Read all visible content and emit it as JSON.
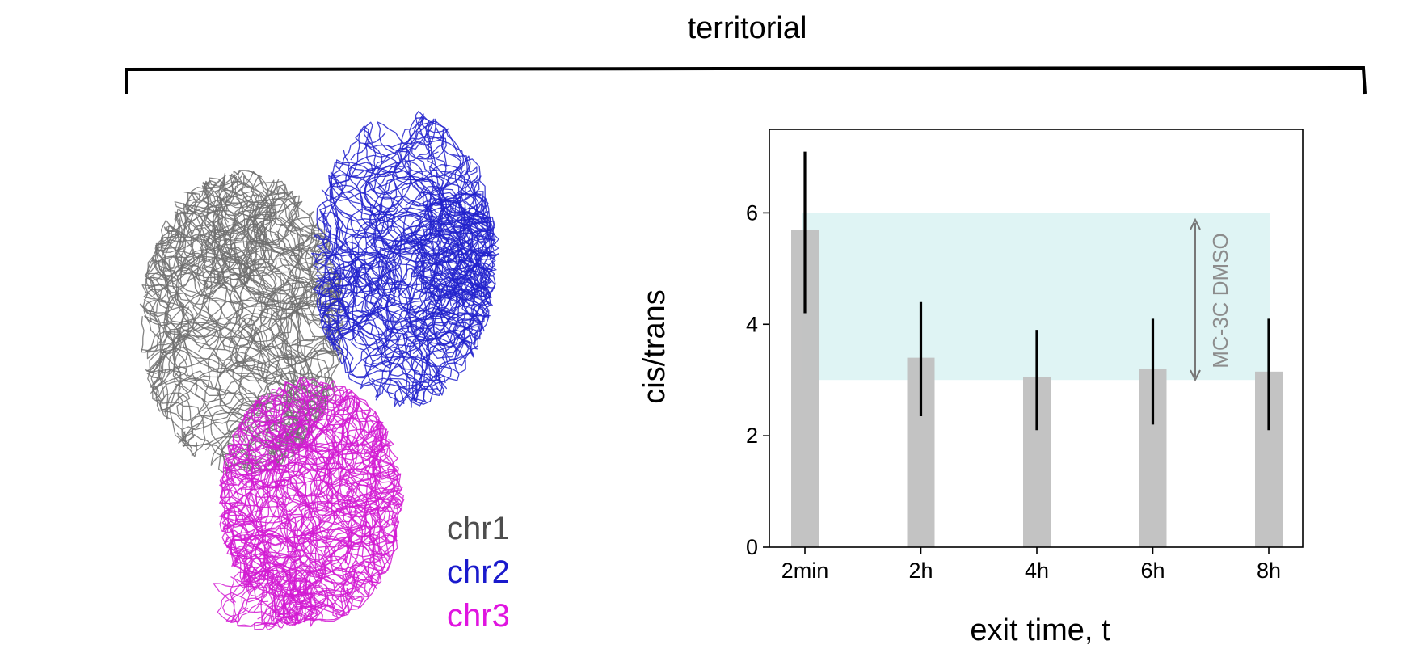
{
  "figure": {
    "title": "territorial"
  },
  "legend": [
    {
      "label": "chr1",
      "color": "#4d4d4d"
    },
    {
      "label": "chr2",
      "color": "#1a1acc"
    },
    {
      "label": "chr3",
      "color": "#e014e0"
    }
  ],
  "colors": {
    "chr1": "#6e6e6e",
    "chr2": "#2222cc",
    "chr3": "#d21ad2",
    "bar": "#c0c0c0",
    "band": "#dff4f4",
    "errorbar": "#000000",
    "band_annotation": "#8c8c8c"
  },
  "chart_data": {
    "type": "bar",
    "categories": [
      "2min",
      "2h",
      "4h",
      "6h",
      "8h"
    ],
    "values": [
      5.7,
      3.4,
      3.05,
      3.2,
      3.15
    ],
    "error_low": [
      4.2,
      2.35,
      2.1,
      2.2,
      2.1
    ],
    "error_high": [
      7.1,
      4.4,
      3.9,
      4.1,
      4.1
    ],
    "xlabel": "exit time, t",
    "ylabel": "cis/trans",
    "ylim": [
      0,
      7.5
    ],
    "yticks": [
      0,
      2,
      4,
      6
    ],
    "band": {
      "label": "MC-3C DMSO",
      "low": 3.0,
      "high": 6.0
    },
    "grid": false
  }
}
